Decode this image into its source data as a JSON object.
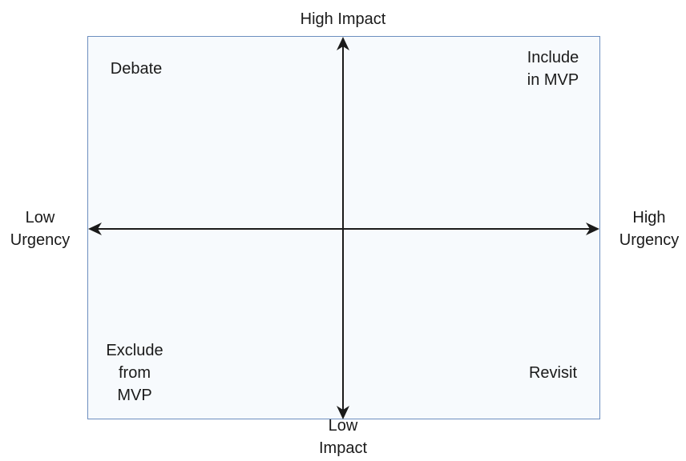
{
  "axes": {
    "top": "High Impact",
    "bottom": "Low\nImpact",
    "left": "Low\nUrgency",
    "right": "High\nUrgency"
  },
  "quadrants": {
    "top_left": "Debate",
    "top_right": "Include\nin MVP",
    "bottom_left": "Exclude\nfrom\nMVP",
    "bottom_right": "Revisit"
  },
  "colors": {
    "box_border": "#6c8ebf",
    "box_fill": "#f7fafd",
    "axis": "#1a1a1a"
  }
}
